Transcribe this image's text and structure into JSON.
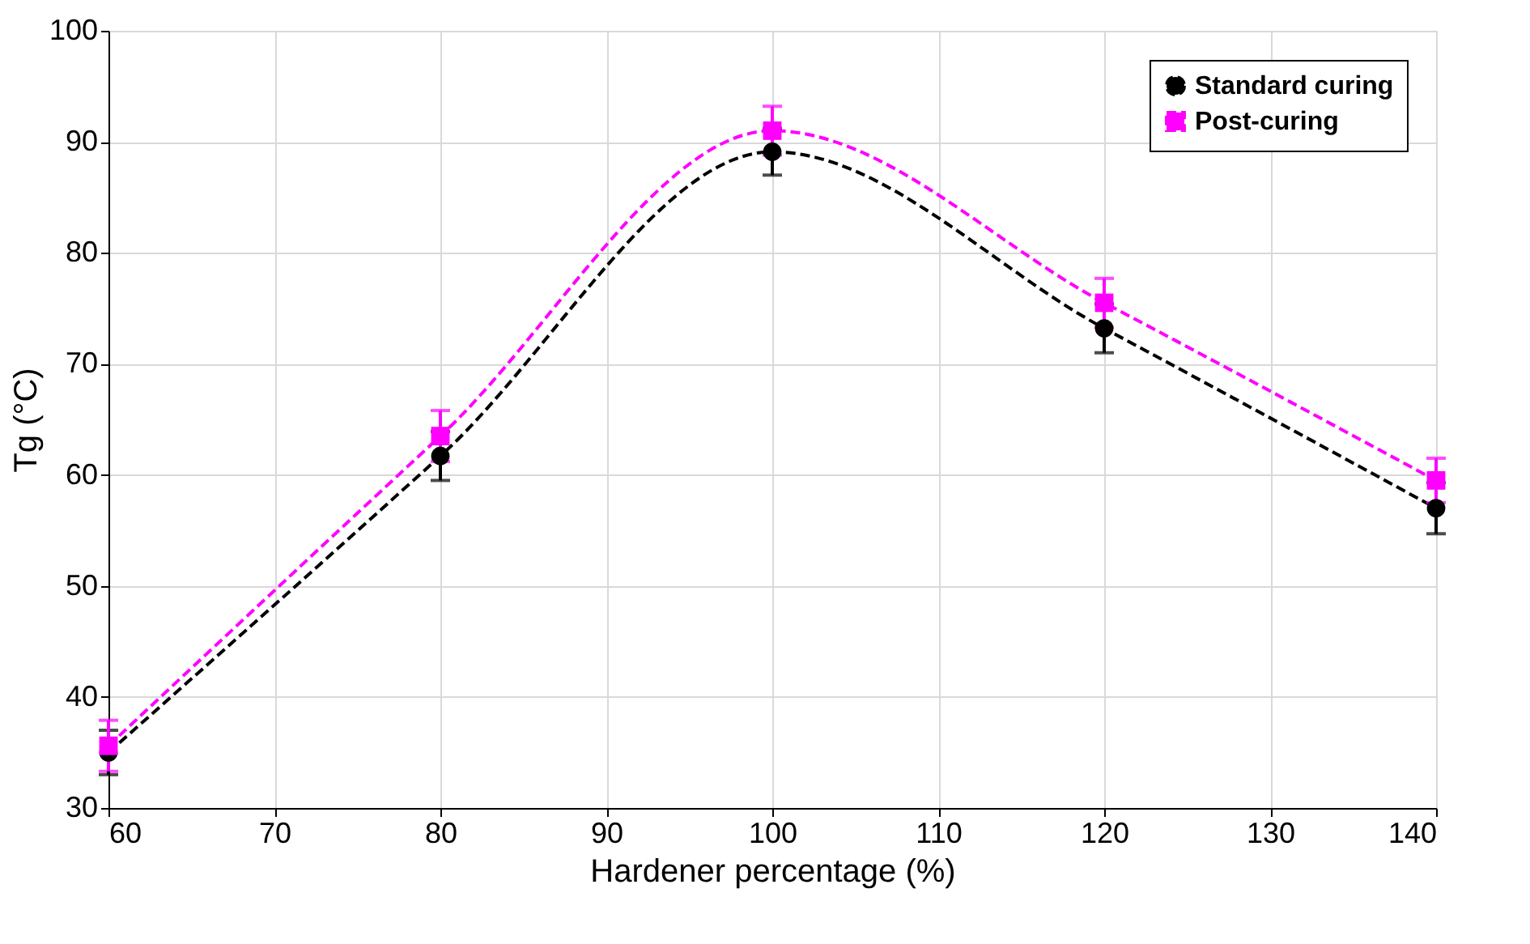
{
  "chart_data": {
    "type": "line",
    "xlabel": "Hardener percentage (%)",
    "ylabel": "Tg (°C)",
    "x": [
      60,
      80,
      100,
      120,
      140
    ],
    "series": [
      {
        "name": "Standard curing",
        "color": "#000000",
        "marker": "circle",
        "values": [
          35.0,
          61.7,
          89.1,
          73.2,
          57.0
        ],
        "errors": [
          2.0,
          2.2,
          2.1,
          2.2,
          2.3
        ]
      },
      {
        "name": "Post-curing",
        "color": "#ff00ff",
        "marker": "square",
        "values": [
          35.6,
          63.5,
          91.0,
          75.5,
          59.5
        ],
        "errors": [
          2.3,
          2.3,
          2.2,
          2.2,
          2.0
        ]
      }
    ],
    "xlim": [
      60,
      140
    ],
    "xticks": [
      60,
      70,
      80,
      90,
      100,
      110,
      120,
      130,
      140
    ],
    "ylim": [
      30,
      100
    ],
    "yticks": [
      30,
      40,
      50,
      60,
      70,
      80,
      90,
      100
    ],
    "grid": true,
    "legend": "top right",
    "line_style": "dashed"
  }
}
